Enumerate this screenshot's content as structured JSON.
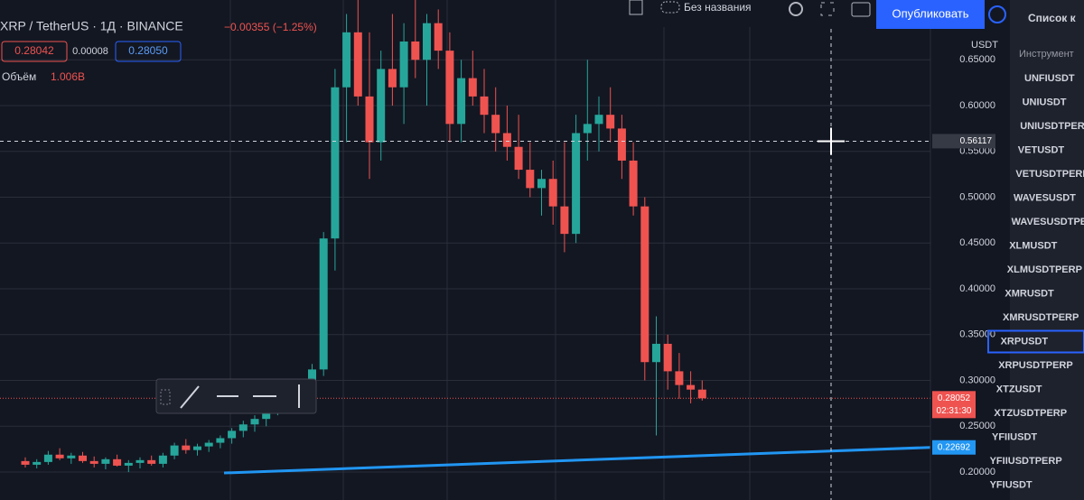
{
  "header": {
    "symbol": "XRP / TetherUS · 1Д · BINANCE",
    "change": "−0.00355 (−1.25%)",
    "bid": "0.28042",
    "spread": "0.00008",
    "ask": "0.28050",
    "volume_label": "Объём",
    "volume_value": "1.006B"
  },
  "toolbar": {
    "layout_name": "Без названия",
    "publish": "Опубликовать"
  },
  "watchlist": {
    "title": "Список к",
    "column": "Инструмент",
    "selected": 11,
    "items": [
      "UNFIUSDT",
      "UNIUSDT",
      "UNIUSDTPERP",
      "VETUSDT",
      "VETUSDTPERP",
      "WAVESUSDT",
      "WAVESUSDTPERP",
      "XLMUSDT",
      "XLMUSDTPERP",
      "XMRUSDT",
      "XMRUSDTPERP",
      "XRPUSDT",
      "XRPUSDTPERP",
      "XTZUSDT",
      "XTZUSDTPERP",
      "YFIIUSDT",
      "YFIIUSDTPERP",
      "YFIUSDT"
    ]
  },
  "chart_data": {
    "type": "candlestick",
    "currency": "USDT",
    "up_color": "#26a69a",
    "down_color": "#ef5350",
    "ylim": [
      0.1695,
      0.7153
    ],
    "yticks": [
      {
        "value": 0.2,
        "label": "0.20000"
      },
      {
        "value": 0.25,
        "label": "0.25000"
      },
      {
        "value": 0.3,
        "label": "0.30000"
      },
      {
        "value": 0.35,
        "label": "0.35000"
      },
      {
        "value": 0.4,
        "label": "0.40000"
      },
      {
        "value": 0.45,
        "label": "0.45000"
      },
      {
        "value": 0.5,
        "label": "0.50000"
      },
      {
        "value": 0.55,
        "label": "0.55000"
      },
      {
        "value": 0.6,
        "label": "0.60000"
      },
      {
        "value": 0.65,
        "label": "0.65000"
      }
    ],
    "grid": true,
    "open": [
      0.212,
      0.208,
      0.211,
      0.219,
      0.215,
      0.218,
      0.212,
      0.209,
      0.214,
      0.207,
      0.21,
      0.213,
      0.209,
      0.218,
      0.229,
      0.224,
      0.228,
      0.232,
      0.237,
      0.245,
      0.252,
      0.258,
      0.27,
      0.278,
      0.272,
      0.288,
      0.312,
      0.455,
      0.62,
      0.68,
      0.61,
      0.56,
      0.64,
      0.62,
      0.67,
      0.65,
      0.69,
      0.66,
      0.58,
      0.63,
      0.61,
      0.59,
      0.57,
      0.555,
      0.53,
      0.51,
      0.52,
      0.49,
      0.46,
      0.57,
      0.58,
      0.59,
      0.575,
      0.54,
      0.49,
      0.32,
      0.34,
      0.31,
      0.295,
      0.29
    ],
    "high": [
      0.216,
      0.214,
      0.223,
      0.226,
      0.221,
      0.222,
      0.217,
      0.216,
      0.219,
      0.213,
      0.216,
      0.218,
      0.221,
      0.232,
      0.236,
      0.231,
      0.235,
      0.24,
      0.248,
      0.256,
      0.262,
      0.275,
      0.285,
      0.284,
      0.292,
      0.318,
      0.462,
      0.64,
      0.7,
      0.72,
      0.68,
      0.66,
      0.7,
      0.69,
      0.72,
      0.7,
      0.705,
      0.68,
      0.65,
      0.66,
      0.64,
      0.62,
      0.6,
      0.59,
      0.56,
      0.53,
      0.54,
      0.56,
      0.59,
      0.65,
      0.61,
      0.62,
      0.59,
      0.56,
      0.5,
      0.37,
      0.35,
      0.33,
      0.31,
      0.3
    ],
    "low": [
      0.205,
      0.204,
      0.208,
      0.213,
      0.209,
      0.21,
      0.205,
      0.203,
      0.206,
      0.2,
      0.204,
      0.207,
      0.205,
      0.214,
      0.22,
      0.218,
      0.222,
      0.226,
      0.231,
      0.238,
      0.244,
      0.25,
      0.262,
      0.268,
      0.266,
      0.282,
      0.305,
      0.42,
      0.56,
      0.6,
      0.52,
      0.54,
      0.6,
      0.58,
      0.63,
      0.6,
      0.64,
      0.56,
      0.56,
      0.6,
      0.57,
      0.55,
      0.54,
      0.52,
      0.5,
      0.48,
      0.47,
      0.44,
      0.45,
      0.54,
      0.55,
      0.56,
      0.52,
      0.48,
      0.3,
      0.24,
      0.29,
      0.28,
      0.275,
      0.278
    ],
    "close": [
      0.208,
      0.211,
      0.219,
      0.215,
      0.218,
      0.212,
      0.209,
      0.214,
      0.207,
      0.21,
      0.213,
      0.209,
      0.218,
      0.229,
      0.224,
      0.228,
      0.232,
      0.237,
      0.245,
      0.252,
      0.258,
      0.27,
      0.278,
      0.272,
      0.288,
      0.312,
      0.455,
      0.62,
      0.68,
      0.61,
      0.56,
      0.64,
      0.62,
      0.67,
      0.65,
      0.69,
      0.66,
      0.58,
      0.63,
      0.61,
      0.59,
      0.57,
      0.555,
      0.53,
      0.51,
      0.52,
      0.49,
      0.46,
      0.57,
      0.58,
      0.59,
      0.575,
      0.54,
      0.49,
      0.32,
      0.34,
      0.31,
      0.295,
      0.29,
      0.2805
    ],
    "last_price": {
      "value": 0.28052,
      "label": "0.28052"
    },
    "countdown": "02:31:30",
    "crosshair_price": {
      "value": 0.56117,
      "label": "0.56117"
    },
    "trendline": {
      "start": 0.199,
      "end": {
        "value": 0.22692,
        "label": "0.22692"
      }
    }
  }
}
